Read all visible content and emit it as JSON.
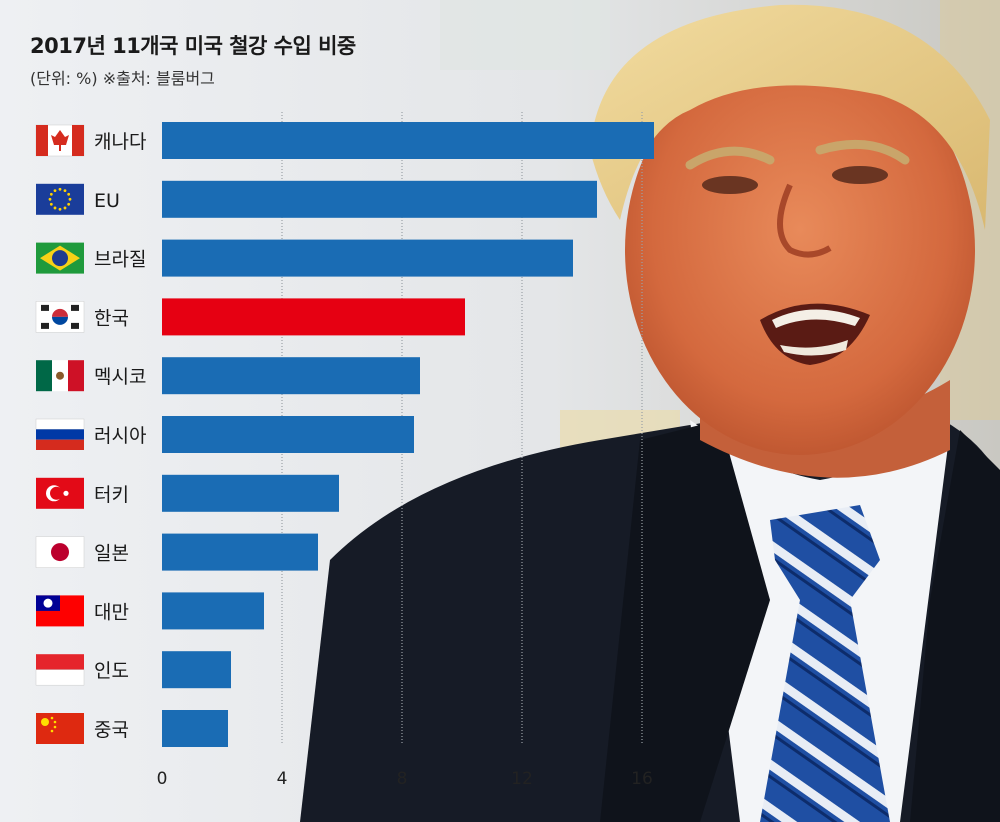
{
  "chart_data": {
    "type": "bar",
    "orientation": "horizontal",
    "title": "2017년 11개국 미국 철강 수입 비중",
    "subtitle": "(단위: %) ※출처: 블룸버그",
    "categories": [
      "캐나다",
      "EU",
      "브라질",
      "한국",
      "멕시코",
      "러시아",
      "터키",
      "일본",
      "대만",
      "인도",
      "중국"
    ],
    "values": [
      16.4,
      14.5,
      13.7,
      10.1,
      8.6,
      8.4,
      5.9,
      5.2,
      3.4,
      2.3,
      2.2
    ],
    "highlight": "한국",
    "x_ticks": [
      0,
      4,
      8,
      12,
      16
    ],
    "xlim": [
      0,
      18
    ],
    "grid": true,
    "colors": {
      "bar": "#1a6cb4",
      "highlight": "#e60012"
    },
    "flags": [
      "canada-flag-icon",
      "eu-flag-icon",
      "brazil-flag-icon",
      "korea-flag-icon",
      "mexico-flag-icon",
      "russia-flag-icon",
      "turkey-flag-icon",
      "japan-flag-icon",
      "taiwan-flag-icon",
      "india-flag-icon",
      "china-flag-icon"
    ]
  }
}
